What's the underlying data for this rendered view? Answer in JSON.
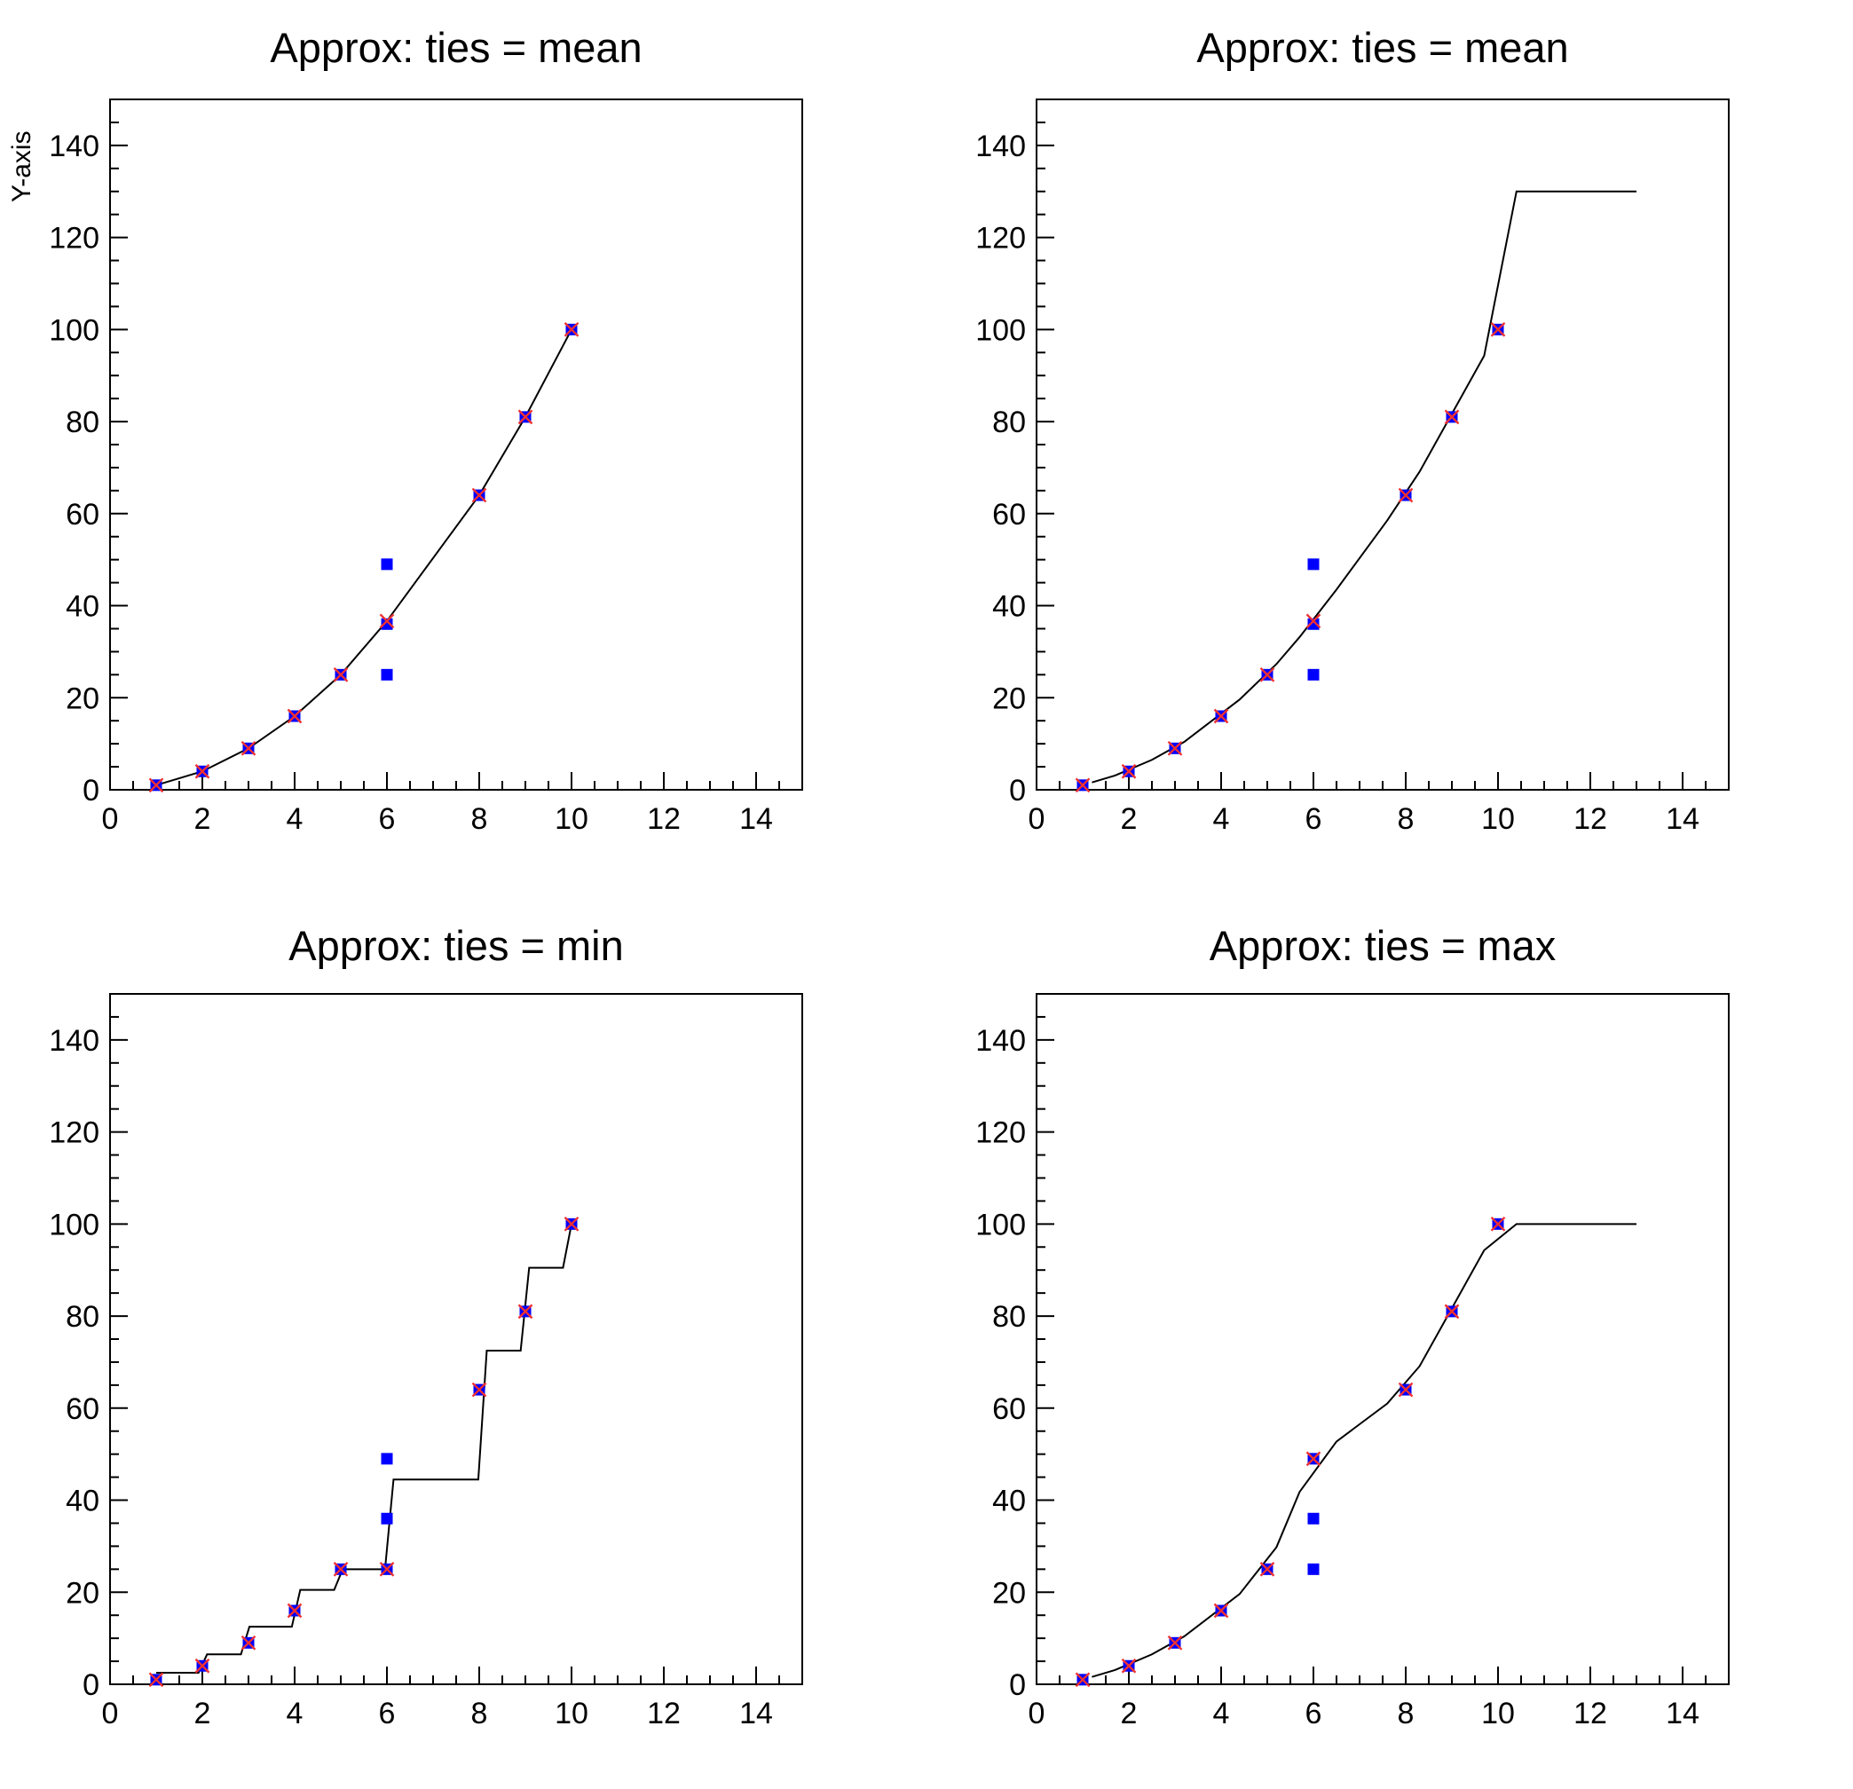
{
  "page": {
    "background": "#ffffff"
  },
  "colors": {
    "input_marker_blue": "#0000ff",
    "tie_marker_red": "#f03030",
    "curve_line": "#000000",
    "axis_line": "#000000",
    "text": "#000000"
  },
  "axes": {
    "x": {
      "min": 0,
      "max": 15,
      "major_step": 2,
      "minor_step": 0.5,
      "tick_labels": [
        "0",
        "2",
        "4",
        "6",
        "8",
        "10",
        "12",
        "14"
      ]
    },
    "y": {
      "min": 0,
      "max": 150,
      "major_step": 20,
      "minor_step": 5,
      "tick_labels": [
        "0",
        "20",
        "40",
        "60",
        "80",
        "100",
        "120",
        "140"
      ]
    }
  },
  "input_points": [
    [
      1,
      1
    ],
    [
      2,
      4
    ],
    [
      3,
      9
    ],
    [
      4,
      16
    ],
    [
      5,
      25
    ],
    [
      6,
      25
    ],
    [
      6,
      36
    ],
    [
      6,
      49
    ],
    [
      8,
      64
    ],
    [
      9,
      81
    ],
    [
      10,
      100
    ]
  ],
  "chart_data": [
    {
      "pad": 1,
      "type": "line+scatter",
      "title": "Approx: ties = mean",
      "xlabel": "",
      "ylabel": "Y-axis",
      "ties": "mean",
      "xlim": [
        0,
        15
      ],
      "ylim": [
        0,
        150
      ],
      "grid": false,
      "legend": "none",
      "tie_points": [
        [
          1,
          1
        ],
        [
          2,
          4
        ],
        [
          3,
          9
        ],
        [
          4,
          16
        ],
        [
          5,
          25
        ],
        [
          6,
          36.67
        ],
        [
          8,
          64
        ],
        [
          9,
          81
        ],
        [
          10,
          100
        ]
      ],
      "curve": [
        [
          1,
          1
        ],
        [
          2,
          4
        ],
        [
          3,
          9
        ],
        [
          4,
          16
        ],
        [
          5,
          25
        ],
        [
          6,
          36.67
        ],
        [
          8,
          64
        ],
        [
          9,
          81
        ],
        [
          10,
          100
        ]
      ]
    },
    {
      "pad": 2,
      "type": "line+scatter",
      "title": "Approx: ties = mean",
      "xlabel": "",
      "ylabel": "",
      "ties": "mean",
      "xlim": [
        0,
        15
      ],
      "ylim": [
        0,
        150
      ],
      "grid": false,
      "legend": "none",
      "tie_points": [
        [
          1,
          1
        ],
        [
          2,
          4
        ],
        [
          3,
          9
        ],
        [
          4,
          16
        ],
        [
          5,
          25
        ],
        [
          6,
          36.67
        ],
        [
          8,
          64
        ],
        [
          9,
          81
        ],
        [
          10,
          100
        ]
      ],
      "curve": [
        [
          1.2,
          1.6
        ],
        [
          1.7,
          3.1
        ],
        [
          2.5,
          6.5
        ],
        [
          3.2,
          10.4
        ],
        [
          4.4,
          19.6
        ],
        [
          5.2,
          27.33
        ],
        [
          5.7,
          33.17
        ],
        [
          6.5,
          43.5
        ],
        [
          7.6,
          58.53
        ],
        [
          8.3,
          69.1
        ],
        [
          9.7,
          94.3
        ],
        [
          10.4,
          130
        ],
        [
          11.3,
          130
        ],
        [
          13,
          130
        ]
      ]
    },
    {
      "pad": 3,
      "type": "line+scatter",
      "title": "Approx: ties = min",
      "xlabel": "",
      "ylabel": "",
      "ties": "min",
      "xlim": [
        0,
        15
      ],
      "ylim": [
        0,
        150
      ],
      "grid": false,
      "legend": "none",
      "tie_points": [
        [
          1,
          1
        ],
        [
          2,
          4
        ],
        [
          3,
          9
        ],
        [
          4,
          16
        ],
        [
          5,
          25
        ],
        [
          6,
          25
        ],
        [
          8,
          64
        ],
        [
          9,
          81
        ],
        [
          10,
          100
        ]
      ],
      "curve": [
        [
          1,
          2.5
        ],
        [
          1.184,
          2.5
        ],
        [
          1.367,
          2.5
        ],
        [
          1.551,
          2.5
        ],
        [
          1.735,
          2.5
        ],
        [
          1.918,
          2.5
        ],
        [
          2.102,
          6.5
        ],
        [
          2.286,
          6.5
        ],
        [
          2.469,
          6.5
        ],
        [
          2.653,
          6.5
        ],
        [
          2.837,
          6.5
        ],
        [
          3.02,
          12.5
        ],
        [
          3.204,
          12.5
        ],
        [
          3.388,
          12.5
        ],
        [
          3.571,
          12.5
        ],
        [
          3.755,
          12.5
        ],
        [
          3.939,
          12.5
        ],
        [
          4.122,
          20.5
        ],
        [
          4.306,
          20.5
        ],
        [
          4.49,
          20.5
        ],
        [
          4.673,
          20.5
        ],
        [
          4.857,
          20.5
        ],
        [
          5.041,
          25
        ],
        [
          5.224,
          25
        ],
        [
          5.408,
          25
        ],
        [
          5.592,
          25
        ],
        [
          5.776,
          25
        ],
        [
          5.959,
          25
        ],
        [
          6.143,
          44.5
        ],
        [
          6.327,
          44.5
        ],
        [
          6.51,
          44.5
        ],
        [
          6.694,
          44.5
        ],
        [
          6.878,
          44.5
        ],
        [
          7.061,
          44.5
        ],
        [
          7.245,
          44.5
        ],
        [
          7.429,
          44.5
        ],
        [
          7.612,
          44.5
        ],
        [
          7.796,
          44.5
        ],
        [
          7.98,
          44.5
        ],
        [
          8.163,
          72.5
        ],
        [
          8.347,
          72.5
        ],
        [
          8.531,
          72.5
        ],
        [
          8.714,
          72.5
        ],
        [
          8.898,
          72.5
        ],
        [
          9.082,
          90.5
        ],
        [
          9.265,
          90.5
        ],
        [
          9.449,
          90.5
        ],
        [
          9.633,
          90.5
        ],
        [
          9.816,
          90.5
        ],
        [
          10,
          100
        ]
      ]
    },
    {
      "pad": 4,
      "type": "line+scatter",
      "title": "Approx: ties = max",
      "xlabel": "",
      "ylabel": "",
      "ties": "max",
      "xlim": [
        0,
        15
      ],
      "ylim": [
        0,
        150
      ],
      "grid": false,
      "legend": "none",
      "tie_points": [
        [
          1,
          1
        ],
        [
          2,
          4
        ],
        [
          3,
          9
        ],
        [
          4,
          16
        ],
        [
          5,
          25
        ],
        [
          6,
          49
        ],
        [
          8,
          64
        ],
        [
          9,
          81
        ],
        [
          10,
          100
        ]
      ],
      "curve": [
        [
          1.2,
          1.6
        ],
        [
          1.7,
          3.1
        ],
        [
          2.5,
          6.5
        ],
        [
          3.2,
          10.4
        ],
        [
          4.4,
          19.6
        ],
        [
          5.2,
          29.8
        ],
        [
          5.7,
          41.8
        ],
        [
          6.5,
          52.75
        ],
        [
          7.6,
          61
        ],
        [
          8.3,
          69.1
        ],
        [
          9.7,
          94.3
        ],
        [
          10.4,
          100
        ],
        [
          11.3,
          100
        ],
        [
          13,
          100
        ]
      ]
    }
  ]
}
